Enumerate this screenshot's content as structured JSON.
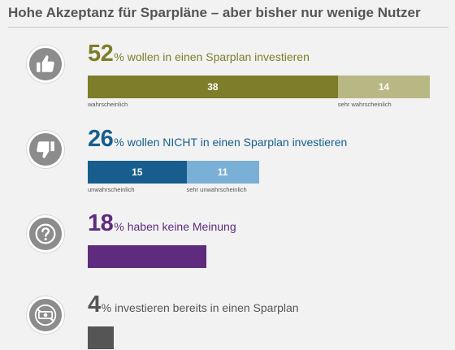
{
  "title": "Hohe Akzeptanz für Sparpläne – aber bisher nur wenige Nutzer",
  "colors": {
    "olive": "#7d7d2a",
    "olive_light": "#b8b885",
    "blue": "#175e8e",
    "blue_light": "#7aafd6",
    "purple": "#5e2b7e",
    "gray": "#555555",
    "icon_bg": "#8c8c8c"
  },
  "rows": [
    {
      "icon": "thumbs-up-icon",
      "big": "52",
      "pct": "%",
      "text": "wollen in einen Sparplan investieren",
      "segments": [
        {
          "label": "wahrscheinlich",
          "value": 38
        },
        {
          "label": "sehr wahrscheinlich",
          "value": 14
        }
      ]
    },
    {
      "icon": "thumbs-down-icon",
      "big": "26",
      "pct": "%",
      "text": "wollen NICHT in einen Sparplan investieren",
      "segments": [
        {
          "label": "unwahrscheinlich",
          "value": 15
        },
        {
          "label": "sehr unwahrscheinlich",
          "value": 11
        }
      ]
    },
    {
      "icon": "question-icon",
      "big": "18",
      "pct": "%",
      "text": "haben keine Meinung",
      "segments": [
        {
          "label": "",
          "value": 18
        }
      ]
    },
    {
      "icon": "banknote-icon",
      "big": "4",
      "pct": "%",
      "text": "investieren bereits in einen Sparplan",
      "segments": [
        {
          "label": "",
          "value": 4
        }
      ]
    }
  ],
  "chart_data": {
    "type": "bar",
    "title": "Hohe Akzeptanz für Sparpläne – aber bisher nur wenige Nutzer",
    "categories": [
      "wollen in einen Sparplan investieren",
      "wollen NICHT in einen Sparplan investieren",
      "haben keine Meinung",
      "investieren bereits in einen Sparplan"
    ],
    "totals": [
      52,
      26,
      18,
      4
    ],
    "series": [
      {
        "name": "wahrscheinlich",
        "values": [
          38,
          null,
          null,
          null
        ]
      },
      {
        "name": "sehr wahrscheinlich",
        "values": [
          14,
          null,
          null,
          null
        ]
      },
      {
        "name": "unwahrscheinlich",
        "values": [
          null,
          15,
          null,
          null
        ]
      },
      {
        "name": "sehr unwahrscheinlich",
        "values": [
          null,
          11,
          null,
          null
        ]
      },
      {
        "values": [
          null,
          null,
          18,
          4
        ]
      }
    ],
    "orientation": "horizontal",
    "stacked": true,
    "unit": "%"
  }
}
